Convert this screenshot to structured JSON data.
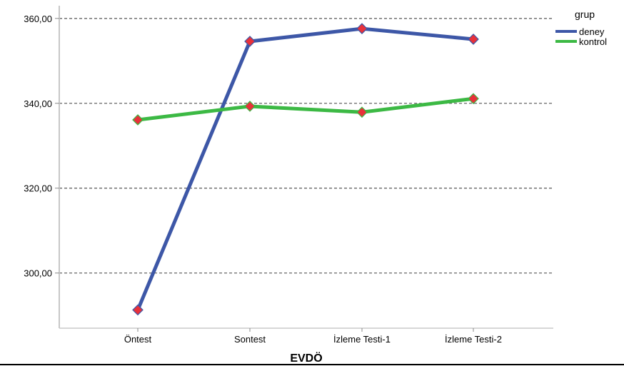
{
  "chart_data": {
    "type": "line",
    "categories": [
      "Öntest",
      "Sontest",
      "İzleme Testi-1",
      "İzleme Testi-2"
    ],
    "series": [
      {
        "name": "deney",
        "values": [
          291.3,
          354.6,
          357.6,
          355.1
        ],
        "color": "#3d57a7"
      },
      {
        "name": "kontrol",
        "values": [
          336.1,
          339.3,
          337.9,
          341.1
        ],
        "color": "#3cb944"
      }
    ],
    "xlabel": "EVDÖ",
    "ylabel": "",
    "ylim": [
      287,
      363
    ],
    "yticks": [
      300,
      320,
      340,
      360
    ],
    "ytick_labels": [
      "300,00",
      "320,00",
      "340,00",
      "360,00"
    ],
    "grid": "horizontal dashed",
    "legend": {
      "title": "grup",
      "position": "top-right"
    },
    "marker_color": "#e8313a"
  }
}
